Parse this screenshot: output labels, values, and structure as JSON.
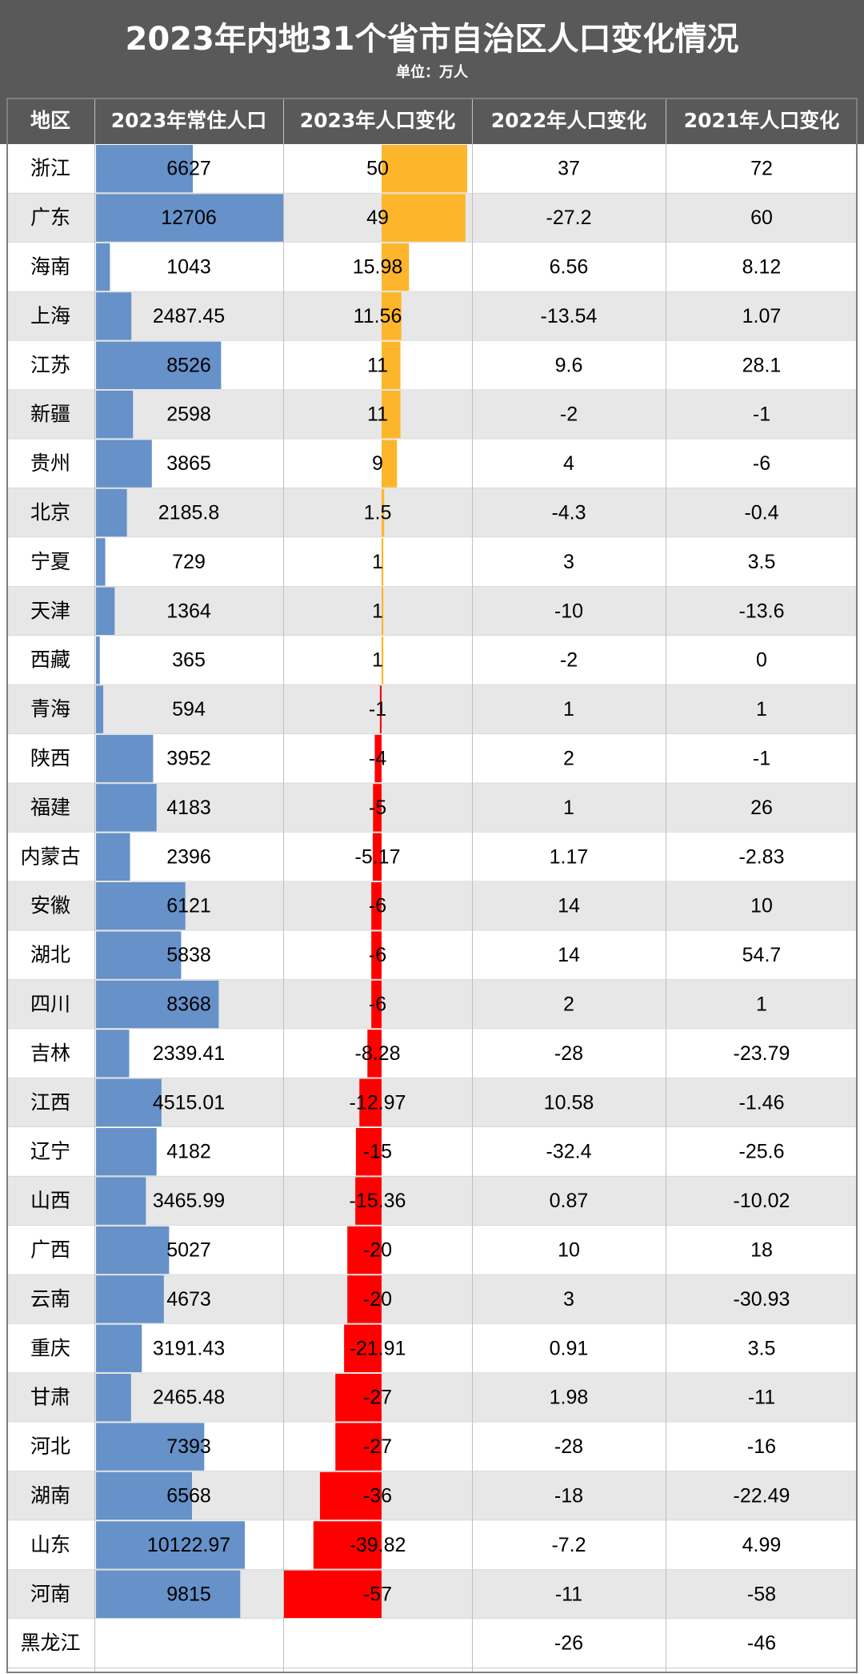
{
  "title": "2023年内地31个省市自治区人口变化情况",
  "unit": "单位：万人",
  "colors": {
    "header_bg": "#595959",
    "row_alt": "#e7e7e7",
    "population_bar": "#6691c9",
    "increase_bar": "#fdb52b",
    "decrease_bar": "#ff0000"
  },
  "chart_data": {
    "type": "table",
    "title": "2023年内地31个省市自治区人口变化情况",
    "subtitle": "单位：万人",
    "columns": [
      "地区",
      "2023年常住人口",
      "2023年人口变化",
      "2022年人口变化",
      "2021年人口变化"
    ],
    "rows": [
      {
        "region": "浙江",
        "pop2023": "6627",
        "chg2023": "50",
        "chg2022": "37",
        "chg2021": "72"
      },
      {
        "region": "广东",
        "pop2023": "12706",
        "chg2023": "49",
        "chg2022": "-27.2",
        "chg2021": "60"
      },
      {
        "region": "海南",
        "pop2023": "1043",
        "chg2023": "15.98",
        "chg2022": "6.56",
        "chg2021": "8.12"
      },
      {
        "region": "上海",
        "pop2023": "2487.45",
        "chg2023": "11.56",
        "chg2022": "-13.54",
        "chg2021": "1.07"
      },
      {
        "region": "江苏",
        "pop2023": "8526",
        "chg2023": "11",
        "chg2022": "9.6",
        "chg2021": "28.1"
      },
      {
        "region": "新疆",
        "pop2023": "2598",
        "chg2023": "11",
        "chg2022": "-2",
        "chg2021": "-1"
      },
      {
        "region": "贵州",
        "pop2023": "3865",
        "chg2023": "9",
        "chg2022": "4",
        "chg2021": "-6"
      },
      {
        "region": "北京",
        "pop2023": "2185.8",
        "chg2023": "1.5",
        "chg2022": "-4.3",
        "chg2021": "-0.4"
      },
      {
        "region": "宁夏",
        "pop2023": "729",
        "chg2023": "1",
        "chg2022": "3",
        "chg2021": "3.5"
      },
      {
        "region": "天津",
        "pop2023": "1364",
        "chg2023": "1",
        "chg2022": "-10",
        "chg2021": "-13.6"
      },
      {
        "region": "西藏",
        "pop2023": "365",
        "chg2023": "1",
        "chg2022": "-2",
        "chg2021": "0"
      },
      {
        "region": "青海",
        "pop2023": "594",
        "chg2023": "-1",
        "chg2022": "1",
        "chg2021": "1"
      },
      {
        "region": "陕西",
        "pop2023": "3952",
        "chg2023": "-4",
        "chg2022": "2",
        "chg2021": "-1"
      },
      {
        "region": "福建",
        "pop2023": "4183",
        "chg2023": "-5",
        "chg2022": "1",
        "chg2021": "26"
      },
      {
        "region": "内蒙古",
        "pop2023": "2396",
        "chg2023": "-5.17",
        "chg2022": "1.17",
        "chg2021": "-2.83"
      },
      {
        "region": "安徽",
        "pop2023": "6121",
        "chg2023": "-6",
        "chg2022": "14",
        "chg2021": "10"
      },
      {
        "region": "湖北",
        "pop2023": "5838",
        "chg2023": "-6",
        "chg2022": "14",
        "chg2021": "54.7"
      },
      {
        "region": "四川",
        "pop2023": "8368",
        "chg2023": "-6",
        "chg2022": "2",
        "chg2021": "1"
      },
      {
        "region": "吉林",
        "pop2023": "2339.41",
        "chg2023": "-8.28",
        "chg2022": "-28",
        "chg2021": "-23.79"
      },
      {
        "region": "江西",
        "pop2023": "4515.01",
        "chg2023": "-12.97",
        "chg2022": "10.58",
        "chg2021": "-1.46"
      },
      {
        "region": "辽宁",
        "pop2023": "4182",
        "chg2023": "-15",
        "chg2022": "-32.4",
        "chg2021": "-25.6"
      },
      {
        "region": "山西",
        "pop2023": "3465.99",
        "chg2023": "-15.36",
        "chg2022": "0.87",
        "chg2021": "-10.02"
      },
      {
        "region": "广西",
        "pop2023": "5027",
        "chg2023": "-20",
        "chg2022": "10",
        "chg2021": "18"
      },
      {
        "region": "云南",
        "pop2023": "4673",
        "chg2023": "-20",
        "chg2022": "3",
        "chg2021": "-30.93"
      },
      {
        "region": "重庆",
        "pop2023": "3191.43",
        "chg2023": "-21.91",
        "chg2022": "0.91",
        "chg2021": "3.5"
      },
      {
        "region": "甘肃",
        "pop2023": "2465.48",
        "chg2023": "-27",
        "chg2022": "1.98",
        "chg2021": "-11"
      },
      {
        "region": "河北",
        "pop2023": "7393",
        "chg2023": "-27",
        "chg2022": "-28",
        "chg2021": "-16"
      },
      {
        "region": "湖南",
        "pop2023": "6568",
        "chg2023": "-36",
        "chg2022": "-18",
        "chg2021": "-22.49"
      },
      {
        "region": "山东",
        "pop2023": "10122.97",
        "chg2023": "-39.82",
        "chg2022": "-7.2",
        "chg2021": "4.99"
      },
      {
        "region": "河南",
        "pop2023": "9815",
        "chg2023": "-57",
        "chg2022": "-11",
        "chg2021": "-58"
      },
      {
        "region": "黑龙江",
        "pop2023": "",
        "chg2023": "",
        "chg2022": "-26",
        "chg2021": "-46"
      }
    ]
  }
}
